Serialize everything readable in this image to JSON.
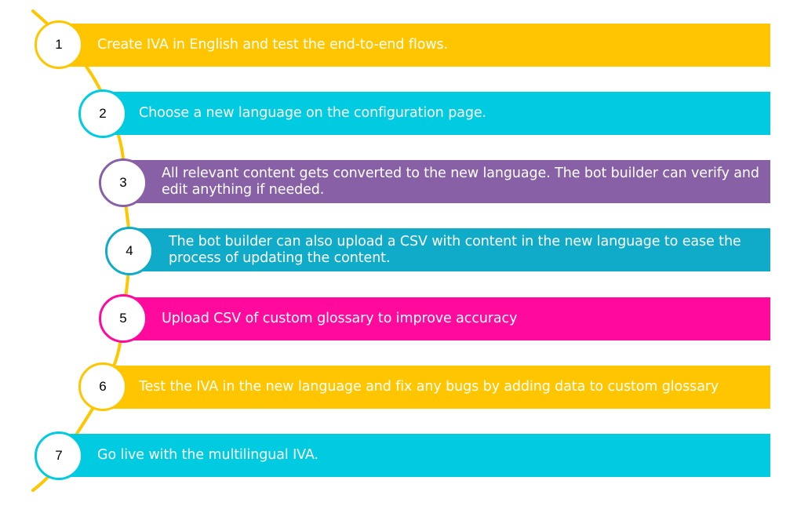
{
  "steps": [
    {
      "number": "1",
      "text": "Create IVA in English and test the end-to-end flows.",
      "bar_color": "#FFC600",
      "circle_color": "#FFC600"
    },
    {
      "number": "2",
      "text": "Choose a new language on the configuration page.",
      "bar_color": "#00CBE0",
      "circle_color": "#00CBE0"
    },
    {
      "number": "3",
      "text": "All relevant content gets converted to the new language. The bot builder can verify and edit anything if needed.",
      "bar_color": "#8760A6",
      "circle_color": "#8760A6"
    },
    {
      "number": "4",
      "text": "The bot builder can also upload a CSV with content in the new language to ease the process of updating the content.",
      "bar_color": "#10ABC8",
      "circle_color": "#10ABC8"
    },
    {
      "number": "5",
      "text": "Upload CSV of custom glossary to improve accuracy",
      "bar_color": "#FF0A9C",
      "circle_color": "#FF0A9C"
    },
    {
      "number": "6",
      "text": "Test the IVA in the new language and fix any bugs by adding data to custom glossary",
      "bar_color": "#FFC600",
      "circle_color": "#FFC600"
    },
    {
      "number": "7",
      "text": "Go live with the multilingual IVA.",
      "bar_color": "#00CBE0",
      "circle_color": "#00CBE0"
    }
  ],
  "connector_color": "#FFC600"
}
